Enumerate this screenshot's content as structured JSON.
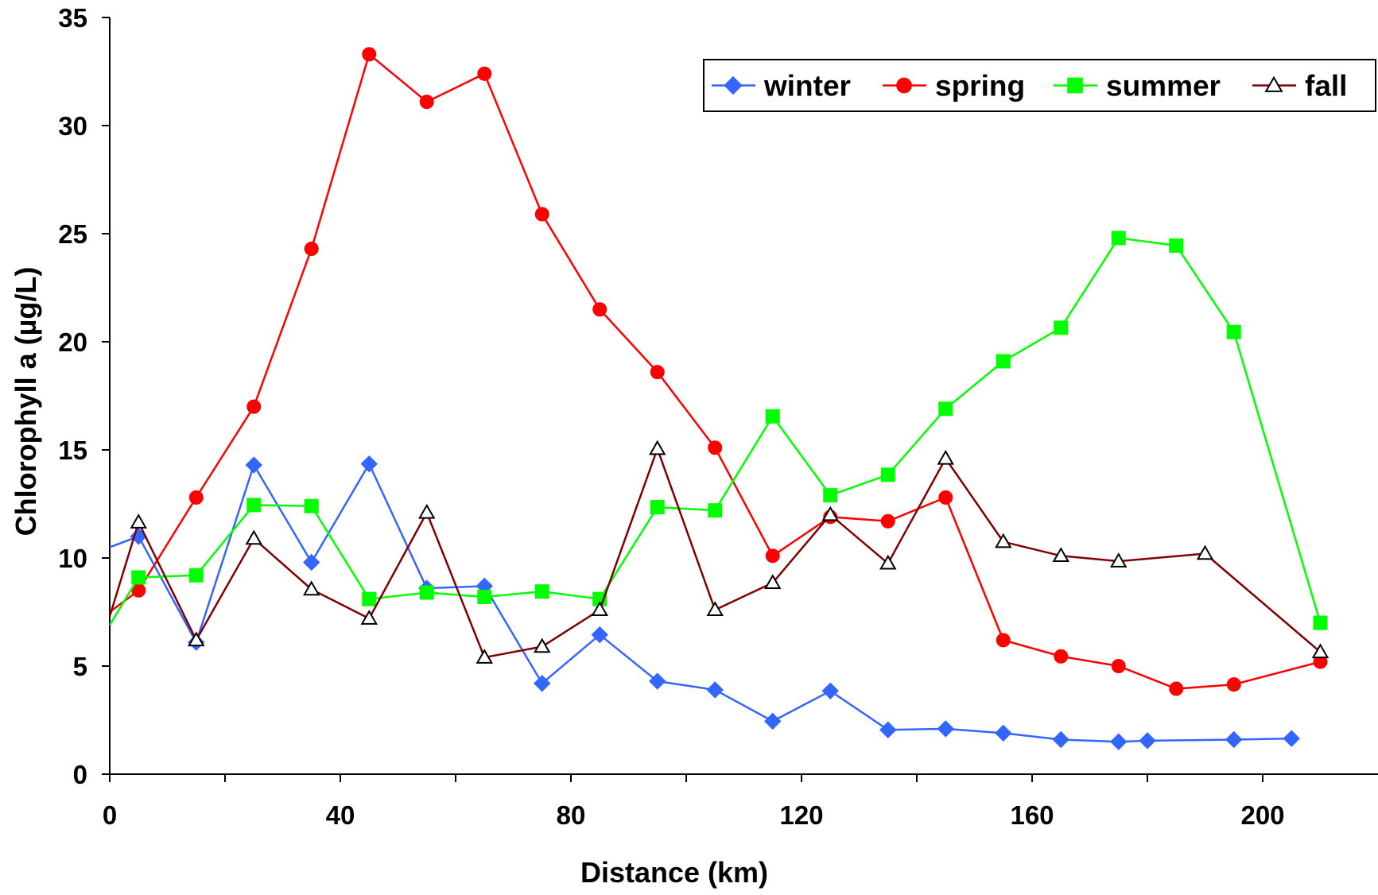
{
  "chart_data": {
    "type": "line",
    "title": "",
    "xlabel": "Distance (km)",
    "ylabel": "Chlorophyll a (µg/L)",
    "xlim": [
      0,
      220
    ],
    "ylim": [
      0,
      35
    ],
    "x_ticks": [
      0,
      40,
      80,
      120,
      160,
      200
    ],
    "y_ticks": [
      0,
      5,
      10,
      15,
      20,
      25,
      30,
      35
    ],
    "grid": false,
    "legend_position": "top-right",
    "series": [
      {
        "name": "winter",
        "color": "#3366ff",
        "marker": "diamond",
        "points": [
          [
            0,
            10.5
          ],
          [
            5,
            11.0
          ],
          [
            15,
            6.1
          ],
          [
            25,
            14.3
          ],
          [
            35,
            9.8
          ],
          [
            45,
            14.35
          ],
          [
            55,
            8.6
          ],
          [
            65,
            8.7
          ],
          [
            75,
            4.2
          ],
          [
            85,
            6.45
          ],
          [
            95,
            4.3
          ],
          [
            105,
            3.9
          ],
          [
            115,
            2.45
          ],
          [
            125,
            3.85
          ],
          [
            135,
            2.05
          ],
          [
            145,
            2.1
          ],
          [
            155,
            1.9
          ],
          [
            165,
            1.6
          ],
          [
            175,
            1.5
          ],
          [
            180,
            1.55
          ],
          [
            195,
            1.6
          ],
          [
            205,
            1.65
          ]
        ]
      },
      {
        "name": "spring",
        "color": "#ff0000",
        "marker": "circle",
        "points": [
          [
            0,
            7.5
          ],
          [
            5,
            8.5
          ],
          [
            15,
            12.8
          ],
          [
            25,
            17.0
          ],
          [
            35,
            24.3
          ],
          [
            45,
            33.3
          ],
          [
            55,
            31.1
          ],
          [
            65,
            32.4
          ],
          [
            75,
            25.9
          ],
          [
            85,
            21.5
          ],
          [
            95,
            18.6
          ],
          [
            105,
            15.1
          ],
          [
            115,
            10.1
          ],
          [
            125,
            11.9
          ],
          [
            135,
            11.7
          ],
          [
            145,
            12.8
          ],
          [
            155,
            6.2
          ],
          [
            165,
            5.45
          ],
          [
            175,
            5.0
          ],
          [
            185,
            3.95
          ],
          [
            195,
            4.15
          ],
          [
            210,
            5.2
          ]
        ]
      },
      {
        "name": "summer",
        "color": "#00ff00",
        "marker": "square",
        "points": [
          [
            0,
            6.9
          ],
          [
            5,
            9.1
          ],
          [
            15,
            9.2
          ],
          [
            25,
            12.45
          ],
          [
            35,
            12.4
          ],
          [
            45,
            8.1
          ],
          [
            55,
            8.4
          ],
          [
            65,
            8.2
          ],
          [
            75,
            8.45
          ],
          [
            85,
            8.1
          ],
          [
            95,
            12.35
          ],
          [
            105,
            12.2
          ],
          [
            115,
            16.55
          ],
          [
            125,
            12.9
          ],
          [
            135,
            13.85
          ],
          [
            145,
            16.9
          ],
          [
            155,
            19.1
          ],
          [
            165,
            20.65
          ],
          [
            175,
            24.8
          ],
          [
            185,
            24.45
          ],
          [
            195,
            20.45
          ],
          [
            210,
            7.0
          ]
        ]
      },
      {
        "name": "fall",
        "color": "#800000",
        "marker": "triangle",
        "points": [
          [
            0,
            7.3
          ],
          [
            5,
            11.65
          ],
          [
            15,
            6.2
          ],
          [
            25,
            10.9
          ],
          [
            35,
            8.55
          ],
          [
            45,
            7.2
          ],
          [
            55,
            12.1
          ],
          [
            65,
            5.4
          ],
          [
            75,
            5.9
          ],
          [
            85,
            7.6
          ],
          [
            95,
            15.05
          ],
          [
            105,
            7.6
          ],
          [
            115,
            8.85
          ],
          [
            125,
            12.0
          ],
          [
            135,
            9.75
          ],
          [
            145,
            14.6
          ],
          [
            155,
            10.75
          ],
          [
            165,
            10.1
          ],
          [
            175,
            9.85
          ],
          [
            190,
            10.2
          ],
          [
            210,
            5.65
          ]
        ]
      }
    ]
  }
}
